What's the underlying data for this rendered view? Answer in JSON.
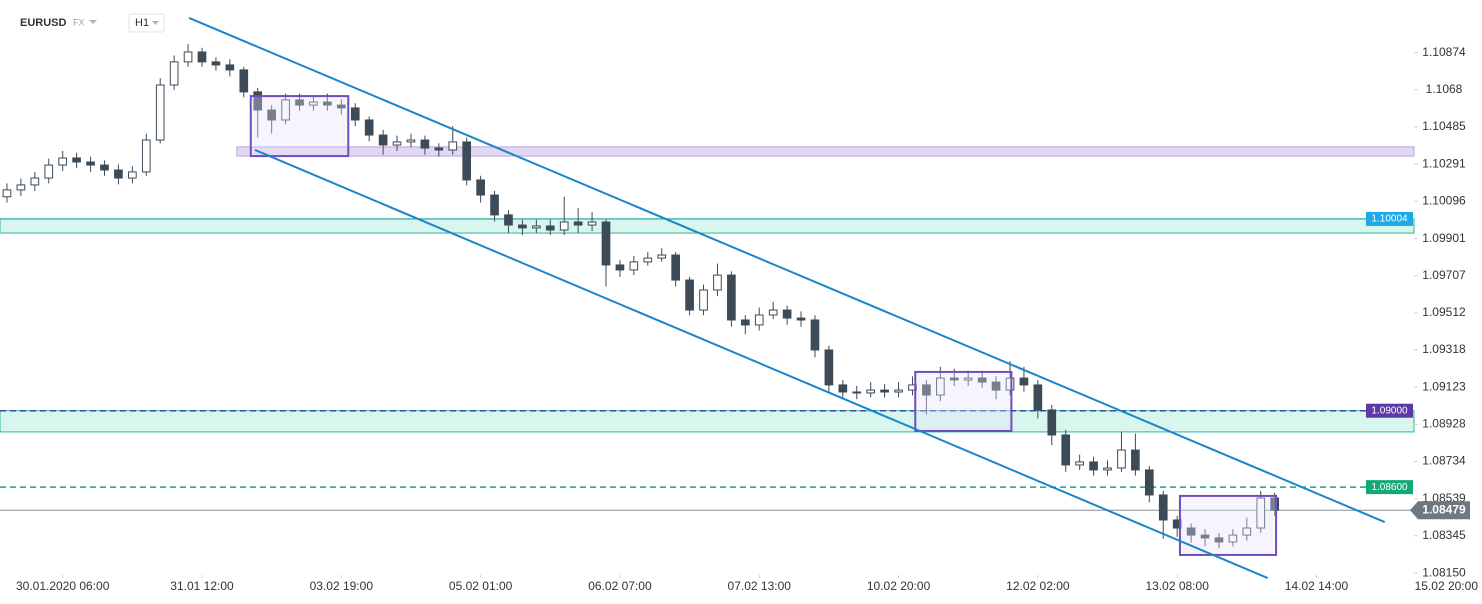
{
  "chart_data": {
    "type": "candlestick",
    "symbol": "EURUSD",
    "market": "FX",
    "interval": "H1",
    "up_color": "#ffffff",
    "down_color": "#3d4a57",
    "outline_color": "#3d4a57",
    "ylim": [
      1.0814,
      1.1115
    ],
    "xlim": [
      -0.5,
      101
    ],
    "yticks": [
      {
        "value": 1.0815,
        "label": "1.08150"
      },
      1.08345,
      1.08539,
      1.08734,
      1.08928,
      1.09123,
      1.09318,
      1.09512,
      1.09707,
      1.09901,
      1.10096,
      1.10291,
      1.10485,
      1.1068,
      1.10874
    ],
    "xticks": [
      {
        "value": 4,
        "label": "30.01.2020  06:00"
      },
      {
        "value": 14,
        "label": "31.01  12:00"
      },
      {
        "value": 24,
        "label": "03.02  19:00"
      },
      {
        "value": 34,
        "label": "05.02  01:00"
      },
      {
        "value": 44,
        "label": "06.02  07:00"
      },
      {
        "value": 54,
        "label": "07.02  13:00"
      },
      {
        "value": 64,
        "label": "10.02  20:00"
      },
      {
        "value": 74,
        "label": "12.02  02:00"
      },
      {
        "value": 84,
        "label": "13.02  08:00"
      },
      {
        "value": 94,
        "label": "14.02  14:00"
      },
      {
        "value": 104,
        "label": "15.02  20:00"
      }
    ],
    "open": [
      1.1012,
      1.10156,
      1.10182,
      1.10218,
      1.10286,
      1.10323,
      1.10302,
      1.10286,
      1.1026,
      1.10218,
      1.1025,
      1.10417,
      1.10705,
      1.10826,
      1.10878,
      1.10826,
      1.1081,
      1.10784,
      1.10669,
      1.10574,
      1.10522,
      1.10627,
      1.106,
      1.10616,
      1.106,
      1.10585,
      1.10522,
      1.10443,
      1.10391,
      1.10407,
      1.10417,
      1.10375,
      1.10365,
      1.10407,
      1.10208,
      1.10129,
      1.10025,
      1.09972,
      1.09957,
      1.09967,
      1.09946,
      1.09988,
      1.09972,
      1.09988,
      1.09763,
      1.09737,
      1.09779,
      1.09799,
      1.09815,
      1.09684,
      1.09527,
      1.09632,
      1.0971,
      1.09475,
      1.09449,
      1.09501,
      1.09527,
      1.09485,
      1.09475,
      1.09318,
      1.09135,
      1.09098,
      1.09093,
      1.09108,
      1.09098,
      1.09108,
      1.09135,
      1.09082,
      1.09171,
      1.09161,
      1.09171,
      1.0915,
      1.09108,
      1.09171,
      1.09135,
      1.09004,
      1.08873,
      1.08716,
      1.08732,
      1.0869,
      1.087,
      1.08794,
      1.0869,
      1.08559,
      1.08428,
      1.08386,
      1.08349,
      1.08334,
      1.08313,
      1.08349,
      1.08386,
      1.08543
    ],
    "high": [
      1.1019,
      1.10215,
      1.1025,
      1.1032,
      1.1036,
      1.1035,
      1.1033,
      1.1031,
      1.1029,
      1.1028,
      1.1045,
      1.1074,
      1.1086,
      1.1092,
      1.109,
      1.1085,
      1.1084,
      1.108,
      1.1069,
      1.106,
      1.1066,
      1.1066,
      1.1065,
      1.1066,
      1.1063,
      1.1061,
      1.1054,
      1.1047,
      1.1044,
      1.1045,
      1.1044,
      1.104,
      1.1049,
      1.1043,
      1.1023,
      1.1015,
      1.1005,
      1.1,
      1.1,
      1.1,
      1.1012,
      1.1006,
      1.1004,
      1.1,
      1.0979,
      1.0981,
      1.0983,
      1.0985,
      1.0983,
      1.097,
      1.0966,
      1.0977,
      1.0973,
      1.095,
      1.0954,
      1.0957,
      1.0955,
      1.0952,
      1.095,
      1.0934,
      1.0916,
      1.0913,
      1.0915,
      1.0914,
      1.0915,
      1.0918,
      1.0916,
      1.0923,
      1.0922,
      1.0921,
      1.092,
      1.0918,
      1.0926,
      1.0923,
      1.0916,
      1.0903,
      1.089,
      1.0877,
      1.0876,
      1.0874,
      1.0889,
      1.0888,
      1.0871,
      1.0858,
      1.0845,
      1.0841,
      1.0838,
      1.0836,
      1.0838,
      1.0844,
      1.0858,
      1.0857
    ],
    "low": [
      1.1009,
      1.10125,
      1.1015,
      1.1019,
      1.10255,
      1.1027,
      1.1025,
      1.1023,
      1.10185,
      1.1019,
      1.1023,
      1.104,
      1.1068,
      1.108,
      1.108,
      1.1078,
      1.1075,
      1.1064,
      1.1043,
      1.1045,
      1.105,
      1.1057,
      1.1057,
      1.1057,
      1.1055,
      1.1049,
      1.1041,
      1.1034,
      1.1036,
      1.1038,
      1.1034,
      1.1033,
      1.1034,
      1.1018,
      1.1009,
      1.0999,
      1.0993,
      1.0992,
      1.0993,
      1.0992,
      1.0992,
      1.0993,
      1.0994,
      1.0965,
      1.097,
      1.0971,
      1.0976,
      1.0978,
      1.0965,
      1.095,
      1.095,
      1.096,
      1.0944,
      1.094,
      1.0942,
      1.0948,
      1.0945,
      1.0944,
      1.0928,
      1.091,
      1.0907,
      1.0906,
      1.0907,
      1.0907,
      1.0907,
      1.0908,
      1.0898,
      1.0905,
      1.0913,
      1.0913,
      1.0912,
      1.0906,
      1.0908,
      1.091,
      1.0896,
      1.0882,
      1.0868,
      1.0869,
      1.0866,
      1.0866,
      1.0868,
      1.0866,
      1.0852,
      1.0833,
      1.0834,
      1.0831,
      1.0829,
      1.0828,
      1.0829,
      1.0832,
      1.0836,
      1.0845
    ],
    "close": [
      1.10156,
      1.10182,
      1.10218,
      1.10286,
      1.10323,
      1.10302,
      1.10286,
      1.1026,
      1.10218,
      1.1025,
      1.10417,
      1.10705,
      1.10826,
      1.10878,
      1.10826,
      1.1081,
      1.10784,
      1.10669,
      1.10574,
      1.10522,
      1.10627,
      1.106,
      1.10616,
      1.106,
      1.10585,
      1.10522,
      1.10443,
      1.10391,
      1.10407,
      1.10417,
      1.10375,
      1.10365,
      1.10407,
      1.10208,
      1.10129,
      1.10025,
      1.09972,
      1.09957,
      1.09967,
      1.09946,
      1.09988,
      1.09972,
      1.09988,
      1.09763,
      1.09737,
      1.09779,
      1.09799,
      1.09815,
      1.09684,
      1.09527,
      1.09632,
      1.0971,
      1.09475,
      1.09449,
      1.09501,
      1.09527,
      1.09485,
      1.09475,
      1.09318,
      1.09135,
      1.09098,
      1.09093,
      1.09108,
      1.09098,
      1.09108,
      1.09135,
      1.09082,
      1.09171,
      1.09161,
      1.09171,
      1.0915,
      1.09108,
      1.09171,
      1.09135,
      1.09004,
      1.08873,
      1.08716,
      1.08732,
      1.0869,
      1.087,
      1.08794,
      1.0869,
      1.08559,
      1.08428,
      1.08386,
      1.08349,
      1.08334,
      1.08313,
      1.08349,
      1.08386,
      1.08543,
      1.08479
    ],
    "levels": [
      {
        "value": 1.10004,
        "color": "#1fa9e6",
        "line_color": "#1aa39a",
        "dash": false
      },
      {
        "value": 1.09,
        "label": "1.09000",
        "color": "#5b3aa8",
        "line_color": "#3a4aa0",
        "dash": true
      },
      {
        "value": 1.086,
        "label": "1.08600",
        "color": "#15a877",
        "line_color": "#15a877",
        "dash": true
      },
      {
        "value": 1.08479,
        "color": "#6f7780",
        "line_color": "#8a9096",
        "dash": false,
        "current": true
      }
    ],
    "zones": [
      {
        "low": 1.0993,
        "high": 1.10004,
        "color": "#d8f6ee",
        "edge": "#2bb3a0"
      },
      {
        "low": 1.08889,
        "high": 1.09,
        "color": "#d8f6ee",
        "edge": "#2bb3a0"
      },
      {
        "low": 1.10333,
        "high": 1.10381,
        "from": 16.5,
        "color": "#e3d8f3",
        "edge": "#b9a2e2"
      }
    ],
    "boxes": [
      {
        "x": [
          17.5,
          24.5
        ],
        "y": [
          1.10333,
          1.10647
        ]
      },
      {
        "x": [
          65.2,
          72.1
        ],
        "y": [
          1.08894,
          1.09203
        ]
      },
      {
        "x": [
          84.2,
          91.1
        ],
        "y": [
          1.08245,
          1.08554
        ]
      }
    ],
    "box_color": "#6e4cc2",
    "trendlines": [
      {
        "x": [
          13.07,
          98.9
        ],
        "y": [
          1.11056,
          1.08417
        ]
      },
      {
        "x": [
          17.8,
          90.5
        ],
        "y": [
          1.10365,
          1.08124
        ]
      }
    ],
    "trend_color": "#1a86c8"
  }
}
